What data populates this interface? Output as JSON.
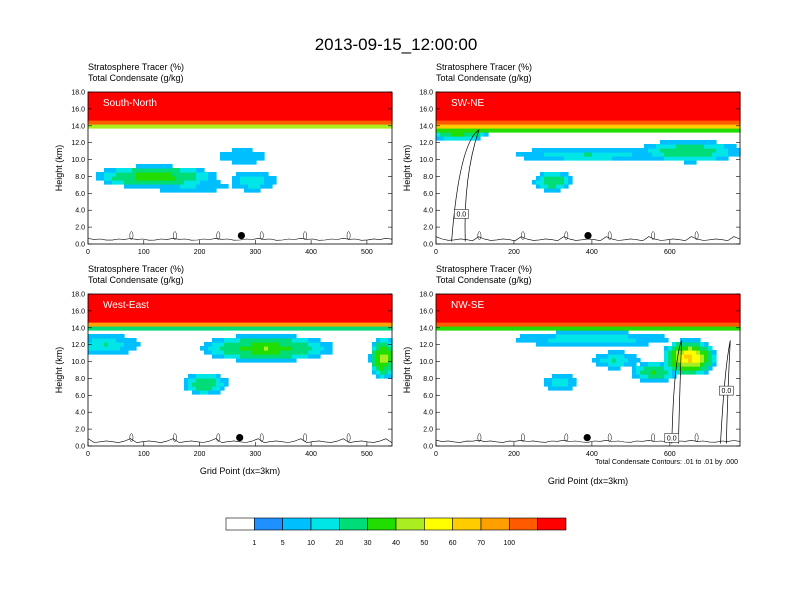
{
  "figure": {
    "title": "2013-09-15_12:00:00",
    "contour_note": "Total Condensate Contours: .01 to .01 by .000"
  },
  "colorbar": {
    "levels": [
      "1",
      "5",
      "10",
      "20",
      "30",
      "40",
      "50",
      "60",
      "70",
      "100"
    ],
    "colors": [
      "#ffffff",
      "#1e90ff",
      "#00bfff",
      "#00e5e5",
      "#00dd77",
      "#22dd00",
      "#aaee22",
      "#ffff00",
      "#ffcc00",
      "#ffa000",
      "#ff5a00",
      "#ff0000"
    ]
  },
  "chart_data": [
    {
      "type": "heatmap",
      "panel_label": "South-North",
      "title_line1": "Stratosphere Tracer   (%)",
      "title_line2": "Total Condensate   (g/kg)",
      "ylabel": "Height (km)",
      "xlabel": "",
      "xlim": [
        0,
        545
      ],
      "ylim": [
        0,
        18
      ],
      "xticks": [
        "0",
        "100",
        "200",
        "300",
        "400",
        "500"
      ],
      "yticks": [
        "0.0",
        "2.0",
        "4.0",
        "6.0",
        "8.0",
        "10.0",
        "12.0",
        "14.0",
        "16.0",
        "18.0"
      ],
      "marker": {
        "x": 275,
        "y": 1.0
      },
      "features": [
        {
          "x0": 0,
          "x1": 545,
          "base": 13.7,
          "sat": 14.6,
          "kind": "strat"
        },
        {
          "cx": 120,
          "cy": 8.0,
          "rx": 110,
          "ry": 1.3,
          "kind": "cloud",
          "peak": 30
        },
        {
          "cx": 180,
          "cy": 6.9,
          "rx": 70,
          "ry": 0.7,
          "kind": "cloud",
          "peak": 5
        },
        {
          "cx": 295,
          "cy": 7.5,
          "rx": 40,
          "ry": 1.2,
          "kind": "cloud",
          "peak": 10
        },
        {
          "cx": 278,
          "cy": 10.4,
          "rx": 42,
          "ry": 0.8,
          "kind": "cloud",
          "peak": 5
        }
      ]
    },
    {
      "type": "heatmap",
      "panel_label": "SW-NE",
      "title_line1": "Stratosphere Tracer   (%)",
      "title_line2": "Total Condensate   (g/kg)",
      "ylabel": "Height (km)",
      "xlabel": "",
      "xlim": [
        0,
        780
      ],
      "ylim": [
        0,
        18
      ],
      "xticks": [
        "0",
        "200",
        "400",
        "600"
      ],
      "yticks": [
        "0.0",
        "2.0",
        "4.0",
        "6.0",
        "8.0",
        "10.0",
        "12.0",
        "14.0",
        "16.0",
        "18.0"
      ],
      "marker": {
        "x": 390,
        "y": 1.0
      },
      "box_labels": [
        "0.0"
      ],
      "features": [
        {
          "x0": 0,
          "x1": 780,
          "base": 13.3,
          "sat": 14.5,
          "kind": "strat"
        },
        {
          "cx": 60,
          "cy": 13.4,
          "rx": 80,
          "ry": 1.2,
          "kind": "cloud",
          "peak": 30
        },
        {
          "cx": 390,
          "cy": 10.6,
          "rx": 190,
          "ry": 0.8,
          "kind": "cloud",
          "peak": 10
        },
        {
          "cx": 650,
          "cy": 11.0,
          "rx": 130,
          "ry": 1.3,
          "kind": "cloud",
          "peak": 20
        },
        {
          "cx": 300,
          "cy": 7.5,
          "rx": 50,
          "ry": 1.2,
          "kind": "cloud",
          "peak": 20
        }
      ]
    },
    {
      "type": "heatmap",
      "panel_label": "West-East",
      "title_line1": "Stratosphere Tracer   (%)",
      "title_line2": "Total Condensate   (g/kg)",
      "ylabel": "Height (km)",
      "xlabel": "Grid Point (dx=3km)",
      "xlim": [
        0,
        545
      ],
      "ylim": [
        0,
        18
      ],
      "xticks": [
        "0",
        "100",
        "200",
        "300",
        "400",
        "500"
      ],
      "yticks": [
        "0.0",
        "2.0",
        "4.0",
        "6.0",
        "8.0",
        "10.0",
        "12.0",
        "14.0",
        "16.0",
        "18.0"
      ],
      "marker": {
        "x": 272,
        "y": 1.0
      },
      "features": [
        {
          "x0": 0,
          "x1": 545,
          "base": 13.9,
          "sat": 14.8,
          "kind": "strat"
        },
        {
          "cx": 30,
          "cy": 12.0,
          "rx": 60,
          "ry": 1.2,
          "kind": "cloud",
          "peak": 10
        },
        {
          "cx": 320,
          "cy": 11.6,
          "rx": 120,
          "ry": 1.6,
          "kind": "cloud",
          "peak": 30
        },
        {
          "cx": 210,
          "cy": 7.4,
          "rx": 40,
          "ry": 1.3,
          "kind": "cloud",
          "peak": 20
        },
        {
          "cx": 530,
          "cy": 10.5,
          "rx": 25,
          "ry": 2.5,
          "kind": "cloud",
          "peak": 40
        }
      ]
    },
    {
      "type": "heatmap",
      "panel_label": "NW-SE",
      "title_line1": "Stratosphere Tracer   (%)",
      "title_line2": "Total Condensate   (g/kg)",
      "ylabel": "Height (km)",
      "xlabel": "Grid Point (dx=3km)",
      "xlim": [
        0,
        780
      ],
      "ylim": [
        0,
        18
      ],
      "xticks": [
        "0",
        "200",
        "400",
        "600"
      ],
      "yticks": [
        "0.0",
        "2.0",
        "4.0",
        "6.0",
        "8.0",
        "10.0",
        "12.0",
        "14.0",
        "16.0",
        "18.0"
      ],
      "marker": {
        "x": 388,
        "y": 1.0
      },
      "box_labels": [
        "0.0",
        "0.0"
      ],
      "features": [
        {
          "x0": 0,
          "x1": 780,
          "base": 13.8,
          "sat": 14.7,
          "kind": "strat"
        },
        {
          "cx": 400,
          "cy": 12.7,
          "rx": 200,
          "ry": 0.9,
          "kind": "cloud",
          "peak": 10
        },
        {
          "cx": 650,
          "cy": 10.5,
          "rx": 70,
          "ry": 2.2,
          "kind": "cloud",
          "peak": 60
        },
        {
          "cx": 560,
          "cy": 8.8,
          "rx": 60,
          "ry": 1.2,
          "kind": "cloud",
          "peak": 20
        },
        {
          "cx": 320,
          "cy": 7.5,
          "rx": 40,
          "ry": 1.0,
          "kind": "cloud",
          "peak": 10
        },
        {
          "cx": 460,
          "cy": 10.2,
          "rx": 60,
          "ry": 1.0,
          "kind": "cloud",
          "peak": 10
        }
      ]
    }
  ]
}
